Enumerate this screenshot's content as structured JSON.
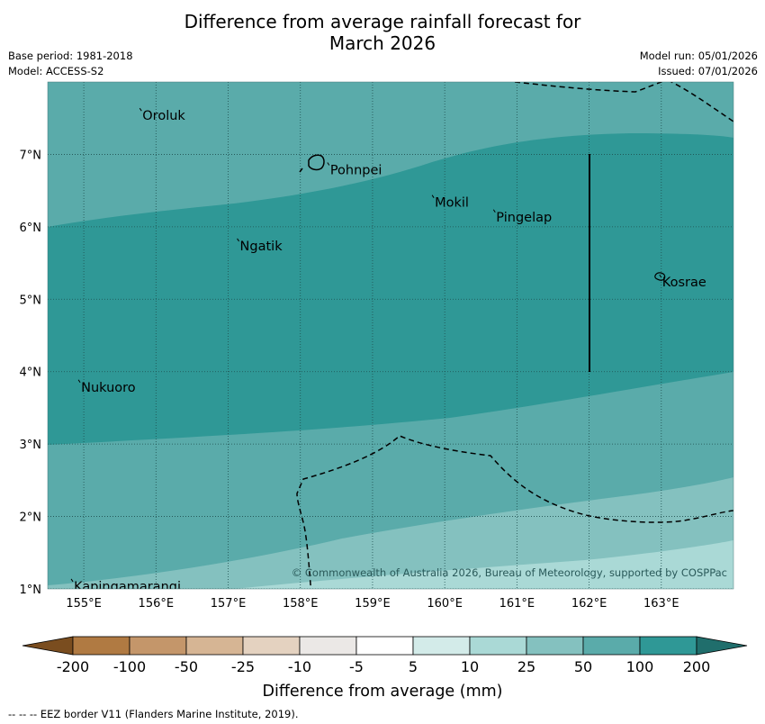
{
  "title_line1": "Difference from average rainfall forecast for",
  "title_line2": "March 2026",
  "base_period": "Base period: 1981-2018",
  "model": "Model: ACCESS-S2",
  "model_run": "Model run: 05/01/2026",
  "issued": "Issued: 07/01/2026",
  "map": {
    "lon_range": [
      154.5,
      164.0
    ],
    "lat_range": [
      1.0,
      8.0
    ],
    "x_ticks": [
      {
        "lon": 155,
        "label": "155°E"
      },
      {
        "lon": 156,
        "label": "156°E"
      },
      {
        "lon": 157,
        "label": "157°E"
      },
      {
        "lon": 158,
        "label": "158°E"
      },
      {
        "lon": 159,
        "label": "159°E"
      },
      {
        "lon": 160,
        "label": "160°E"
      },
      {
        "lon": 161,
        "label": "161°E"
      },
      {
        "lon": 162,
        "label": "162°E"
      },
      {
        "lon": 163,
        "label": "163°E"
      }
    ],
    "y_ticks": [
      {
        "lat": 1,
        "label": "1°N"
      },
      {
        "lat": 2,
        "label": "2°N"
      },
      {
        "lat": 3,
        "label": "3°N"
      },
      {
        "lat": 4,
        "label": "4°N"
      },
      {
        "lat": 5,
        "label": "5°N"
      },
      {
        "lat": 6,
        "label": "6°N"
      },
      {
        "lat": 7,
        "label": "7°N"
      }
    ],
    "places": [
      {
        "name": "Oroluk",
        "lon": 155.8,
        "lat": 7.6
      },
      {
        "name": "Pohnpei",
        "lon": 158.4,
        "lat": 6.85
      },
      {
        "name": "Mokil",
        "lon": 159.85,
        "lat": 6.4
      },
      {
        "name": "Pingelap",
        "lon": 160.7,
        "lat": 6.2
      },
      {
        "name": "Ngatik",
        "lon": 157.15,
        "lat": 5.8
      },
      {
        "name": "Kosrae",
        "lon": 163.0,
        "lat": 5.3
      },
      {
        "name": "Nukuoro",
        "lon": 154.95,
        "lat": 3.85
      },
      {
        "name": "Kapingamarangi",
        "lon": 154.85,
        "lat": 1.1
      }
    ],
    "copyright": "© Commonwealth of Australia 2026, Bureau of Meteorology, supported by COSPPac"
  },
  "colorbar": {
    "ticks": [
      "-200",
      "-100",
      "-50",
      "-25",
      "-10",
      "-5",
      "5",
      "10",
      "25",
      "50",
      "100",
      "200"
    ],
    "colors": [
      "#7a4d1f",
      "#b07a42",
      "#c4966a",
      "#d6b594",
      "#e4d2c0",
      "#ebe8e6",
      "#ffffff",
      "#d3ebe9",
      "#aad9d6",
      "#84c1bf",
      "#5aabaa",
      "#2f9896",
      "#206e6c"
    ],
    "label": "Difference from average (mm)"
  },
  "footer": "--  --  -- EEZ border V11 (Flanders Marine Institute, 2019)."
}
